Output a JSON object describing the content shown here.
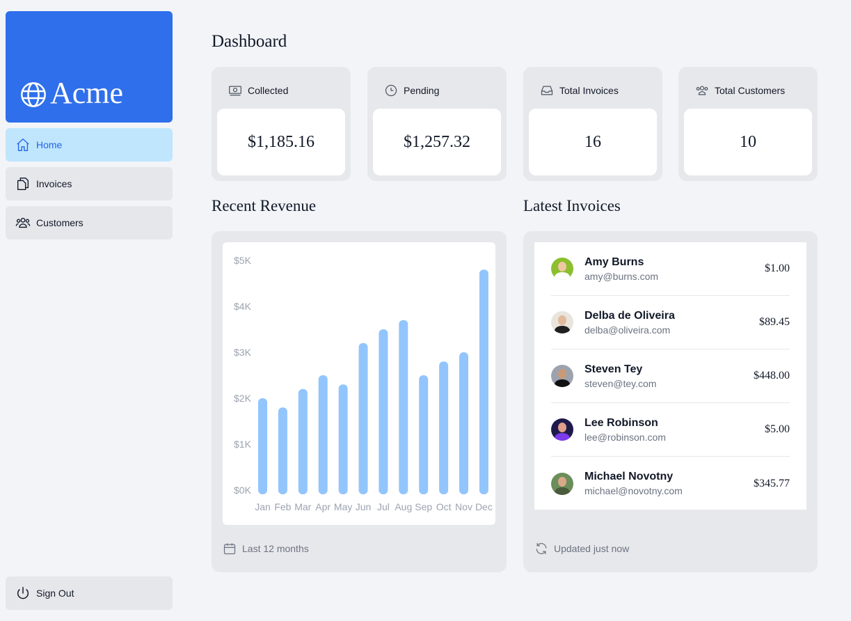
{
  "sidebar": {
    "brand": "Acme",
    "items": [
      {
        "label": "Home",
        "icon": "home-icon"
      },
      {
        "label": "Invoices",
        "icon": "document-duplicate-icon"
      },
      {
        "label": "Customers",
        "icon": "user-group-icon"
      }
    ],
    "signout": {
      "label": "Sign Out",
      "icon": "power-icon"
    }
  },
  "page": {
    "title": "Dashboard"
  },
  "cards": [
    {
      "label": "Collected",
      "value": "$1,185.16",
      "icon": "banknotes-icon"
    },
    {
      "label": "Pending",
      "value": "$1,257.32",
      "icon": "clock-icon"
    },
    {
      "label": "Total Invoices",
      "value": "16",
      "icon": "inbox-icon"
    },
    {
      "label": "Total Customers",
      "value": "10",
      "icon": "user-group-icon"
    }
  ],
  "revenue": {
    "title": "Recent Revenue",
    "footer": "Last 12 months"
  },
  "chart_data": {
    "type": "bar",
    "categories": [
      "Jan",
      "Feb",
      "Mar",
      "Apr",
      "May",
      "Jun",
      "Jul",
      "Aug",
      "Sep",
      "Oct",
      "Nov",
      "Dec"
    ],
    "values": [
      2000,
      1800,
      2200,
      2500,
      2300,
      3200,
      3500,
      3700,
      2500,
      2800,
      3000,
      4800
    ],
    "ylim": [
      0,
      5000
    ],
    "yticks": [
      "$0K",
      "$1K",
      "$2K",
      "$3K",
      "$4K",
      "$5K"
    ],
    "color": "#93c5fd",
    "grid": false
  },
  "latest": {
    "title": "Latest Invoices",
    "footer": "Updated just now",
    "invoices": [
      {
        "name": "Amy Burns",
        "email": "amy@burns.com",
        "amount": "$1.00"
      },
      {
        "name": "Delba de Oliveira",
        "email": "delba@oliveira.com",
        "amount": "$89.45"
      },
      {
        "name": "Steven Tey",
        "email": "steven@tey.com",
        "amount": "$448.00"
      },
      {
        "name": "Lee Robinson",
        "email": "lee@robinson.com",
        "amount": "$5.00"
      },
      {
        "name": "Michael Novotny",
        "email": "michael@novotny.com",
        "amount": "$345.77"
      }
    ]
  }
}
